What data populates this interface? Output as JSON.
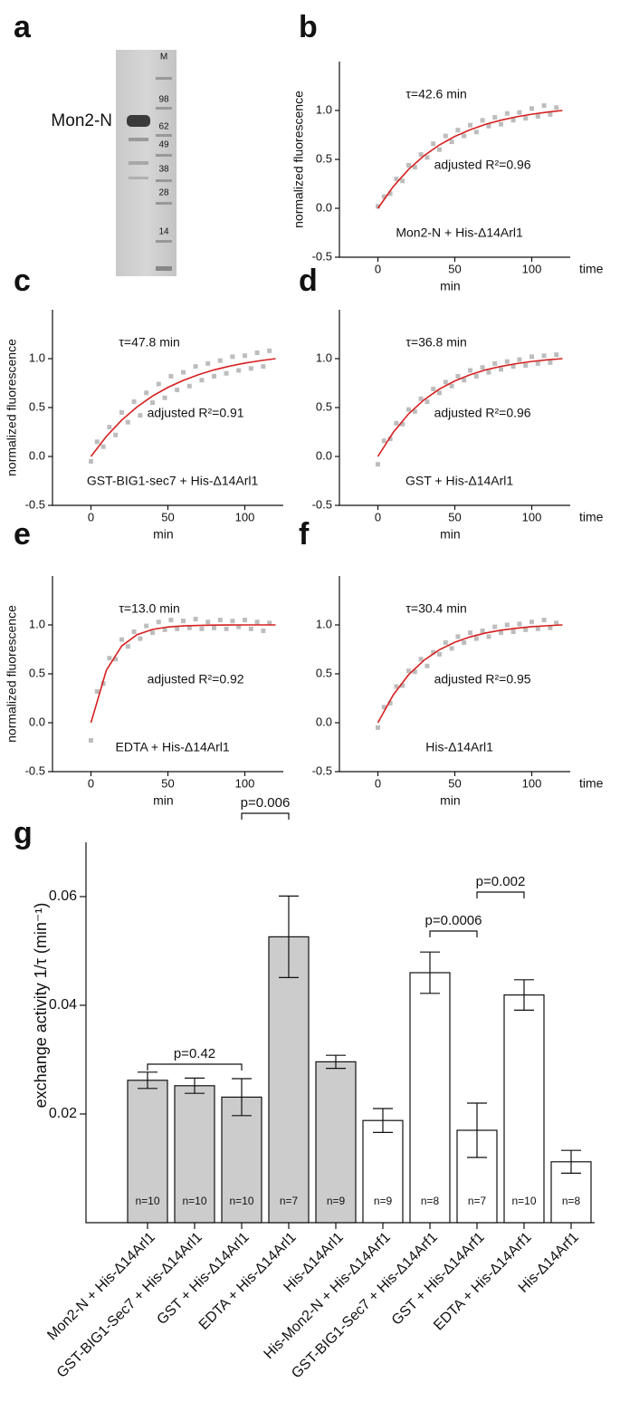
{
  "panel_labels": [
    "a",
    "b",
    "c",
    "d",
    "e",
    "f",
    "g"
  ],
  "gel": {
    "sample_label": "Mon2-N",
    "lane_label": "M",
    "markers": [
      98,
      62,
      49,
      38,
      28,
      14
    ]
  },
  "chart_data": [
    {
      "type": "scatter",
      "ylabel": "normalized fluorescence",
      "xlabel": "min",
      "xlabel_end": "time",
      "annotations": [
        "τ=42.6 min",
        "adjusted R²=0.96",
        "Mon2-N + His-Δ14Arl1"
      ],
      "xlim": [
        -25,
        125
      ],
      "ylim": [
        -0.5,
        1.5
      ],
      "xticks": [
        0,
        50,
        100
      ],
      "yticks": [
        -0.5,
        {
          "value": 0,
          "label": "0.0"
        },
        0.5,
        {
          "value": 1,
          "label": "1.0"
        }
      ],
      "series": [
        {
          "type": "scatter",
          "color": "#bdbdbd",
          "x": [
            0,
            4,
            8,
            12,
            16,
            20,
            24,
            28,
            32,
            36,
            40,
            44,
            48,
            52,
            56,
            60,
            64,
            68,
            72,
            76,
            80,
            84,
            88,
            92,
            96,
            100,
            104,
            108,
            112,
            116
          ],
          "values": [
            0.02,
            0.12,
            0.15,
            0.3,
            0.28,
            0.44,
            0.42,
            0.55,
            0.52,
            0.66,
            0.6,
            0.74,
            0.68,
            0.8,
            0.74,
            0.85,
            0.78,
            0.9,
            0.84,
            0.93,
            0.86,
            0.97,
            0.9,
            0.98,
            0.92,
            1.02,
            0.94,
            1.05,
            0.96,
            1.03
          ]
        },
        {
          "type": "line",
          "color": "#d62020",
          "x": [
            0,
            10,
            20,
            30,
            40,
            50,
            60,
            70,
            80,
            90,
            100,
            110,
            120
          ],
          "values": [
            0,
            0.222,
            0.399,
            0.538,
            0.648,
            0.735,
            0.803,
            0.859,
            0.901,
            0.935,
            0.962,
            0.983,
            1.0
          ]
        }
      ]
    },
    {
      "type": "scatter",
      "ylabel": "normalized fluorescence",
      "xlabel": "min",
      "annotations": [
        "τ=47.8 min",
        "adjusted R²=0.91",
        "GST-BIG1-sec7 + His-Δ14Arl1"
      ],
      "xlim": [
        -25,
        125
      ],
      "ylim": [
        -0.5,
        1.5
      ],
      "xticks": [
        0,
        50,
        100
      ],
      "yticks": [
        -0.5,
        {
          "value": 0,
          "label": "0.0"
        },
        0.5,
        {
          "value": 1,
          "label": "1.0"
        }
      ],
      "series": [
        {
          "type": "scatter",
          "color": "#bdbdbd",
          "x": [
            0,
            4,
            8,
            12,
            16,
            20,
            24,
            28,
            32,
            36,
            40,
            44,
            48,
            52,
            56,
            60,
            64,
            68,
            72,
            76,
            80,
            84,
            88,
            92,
            96,
            100,
            104,
            108,
            112,
            116
          ],
          "values": [
            -0.05,
            0.15,
            0.1,
            0.3,
            0.22,
            0.45,
            0.35,
            0.56,
            0.42,
            0.65,
            0.55,
            0.74,
            0.6,
            0.82,
            0.68,
            0.86,
            0.72,
            0.92,
            0.78,
            0.95,
            0.82,
            0.98,
            0.85,
            1.02,
            0.88,
            1.03,
            0.9,
            1.06,
            0.92,
            1.08
          ]
        },
        {
          "type": "line",
          "color": "#d62020",
          "x": [
            0,
            10,
            20,
            30,
            40,
            50,
            60,
            70,
            80,
            90,
            100,
            110,
            120
          ],
          "values": [
            0,
            0.205,
            0.372,
            0.507,
            0.617,
            0.706,
            0.778,
            0.837,
            0.885,
            0.923,
            0.954,
            0.979,
            1.0
          ]
        }
      ]
    },
    {
      "type": "scatter",
      "xlabel": "min",
      "xlabel_end": "time",
      "annotations": [
        "τ=36.8 min",
        "adjusted R²=0.96",
        "GST + His-Δ14Arl1"
      ],
      "xlim": [
        -25,
        125
      ],
      "ylim": [
        -0.5,
        1.5
      ],
      "xticks": [
        0,
        50,
        100
      ],
      "yticks": [
        -0.5,
        {
          "value": 0,
          "label": "0.0"
        },
        0.5,
        {
          "value": 1,
          "label": "1.0"
        }
      ],
      "series": [
        {
          "type": "scatter",
          "color": "#bdbdbd",
          "x": [
            0,
            4,
            8,
            12,
            16,
            20,
            24,
            28,
            32,
            36,
            40,
            44,
            48,
            52,
            56,
            60,
            64,
            68,
            72,
            76,
            80,
            84,
            88,
            92,
            96,
            100,
            104,
            108,
            112,
            116
          ],
          "values": [
            -0.08,
            0.16,
            0.18,
            0.34,
            0.33,
            0.48,
            0.46,
            0.59,
            0.56,
            0.69,
            0.65,
            0.76,
            0.72,
            0.82,
            0.78,
            0.88,
            0.82,
            0.91,
            0.86,
            0.95,
            0.89,
            0.97,
            0.92,
            0.99,
            0.93,
            1.02,
            0.95,
            1.03,
            0.96,
            1.04
          ]
        },
        {
          "type": "line",
          "color": "#d62020",
          "x": [
            0,
            10,
            20,
            30,
            40,
            50,
            60,
            70,
            80,
            90,
            100,
            110,
            120
          ],
          "values": [
            0,
            0.247,
            0.436,
            0.579,
            0.689,
            0.772,
            0.836,
            0.885,
            0.921,
            0.949,
            0.971,
            0.988,
            1.0
          ]
        }
      ]
    },
    {
      "type": "scatter",
      "ylabel": "normalized fluorescence",
      "xlabel": "min",
      "annotations": [
        "τ=13.0 min",
        "adjusted R²=0.92",
        "EDTA + His-Δ14Arl1"
      ],
      "xlim": [
        -25,
        125
      ],
      "ylim": [
        -0.5,
        1.5
      ],
      "xticks": [
        0,
        50,
        100
      ],
      "yticks": [
        -0.5,
        {
          "value": 0,
          "label": "0.0"
        },
        0.5,
        {
          "value": 1,
          "label": "1.0"
        }
      ],
      "series": [
        {
          "type": "scatter",
          "color": "#bdbdbd",
          "x": [
            0,
            4,
            8,
            12,
            16,
            20,
            24,
            28,
            32,
            36,
            40,
            44,
            48,
            52,
            56,
            60,
            64,
            68,
            72,
            76,
            80,
            84,
            88,
            92,
            96,
            100,
            104,
            108,
            112,
            116
          ],
          "values": [
            -0.18,
            0.32,
            0.4,
            0.66,
            0.65,
            0.85,
            0.78,
            0.93,
            0.86,
            0.99,
            0.92,
            1.03,
            0.95,
            1.05,
            0.96,
            1.04,
            0.97,
            1.06,
            0.96,
            1.03,
            0.97,
            1.05,
            0.96,
            1.04,
            0.98,
            1.05,
            0.96,
            1.03,
            0.94,
            1.02
          ]
        },
        {
          "type": "line",
          "color": "#d62020",
          "x": [
            0,
            10,
            20,
            30,
            40,
            50,
            60,
            70,
            80,
            90,
            100,
            110,
            120
          ],
          "values": [
            0,
            0.537,
            0.785,
            0.901,
            0.954,
            0.979,
            0.99,
            0.995,
            0.998,
            0.999,
            1.0,
            1.0,
            1.0
          ]
        }
      ]
    },
    {
      "type": "scatter",
      "xlabel": "min",
      "xlabel_end": "time",
      "annotations": [
        "τ=30.4 min",
        "adjusted R²=0.95",
        "His-Δ14Arl1"
      ],
      "xlim": [
        -25,
        125
      ],
      "ylim": [
        -0.5,
        1.5
      ],
      "xticks": [
        0,
        50,
        100
      ],
      "yticks": [
        -0.5,
        {
          "value": 0,
          "label": "0.0"
        },
        0.5,
        {
          "value": 1,
          "label": "1.0"
        }
      ],
      "series": [
        {
          "type": "scatter",
          "color": "#bdbdbd",
          "x": [
            0,
            4,
            8,
            12,
            16,
            20,
            24,
            28,
            32,
            36,
            40,
            44,
            48,
            52,
            56,
            60,
            64,
            68,
            72,
            76,
            80,
            84,
            88,
            92,
            96,
            100,
            104,
            108,
            112,
            116
          ],
          "values": [
            -0.05,
            0.16,
            0.2,
            0.37,
            0.38,
            0.53,
            0.52,
            0.65,
            0.58,
            0.72,
            0.7,
            0.82,
            0.76,
            0.88,
            0.82,
            0.92,
            0.86,
            0.94,
            0.88,
            0.98,
            0.92,
            1.0,
            0.93,
            1.01,
            0.95,
            1.03,
            0.96,
            1.05,
            0.97,
            1.02
          ]
        },
        {
          "type": "line",
          "color": "#d62020",
          "x": [
            0,
            10,
            20,
            30,
            40,
            50,
            60,
            70,
            80,
            90,
            100,
            110,
            120
          ],
          "values": [
            0,
            0.285,
            0.491,
            0.639,
            0.746,
            0.823,
            0.878,
            0.917,
            0.946,
            0.966,
            0.982,
            0.992,
            1.0
          ]
        }
      ]
    },
    {
      "type": "bar",
      "ylabel": "exchange activity 1/τ (min⁻¹)",
      "categories": [
        "Mon2-N + His-Δ14Arl1",
        "GST-BIG1-Sec7 + His-Δ14Arl1",
        "GST + His-Δ14Arl1",
        "EDTA + His-Δ14Arl1",
        "His-Δ14Arl1",
        "His-Mon2-N + His-Δ14Arf1",
        "GST-BIG1-Sec7 + His-Δ14Arf1",
        "GST + His-Δ14Arf1",
        "EDTA + His-Δ14Arf1",
        "His-Δ14Arf1"
      ],
      "values": [
        0.0262,
        0.0252,
        0.0231,
        0.0526,
        0.0296,
        0.0188,
        0.046,
        0.017,
        0.0419,
        0.0112
      ],
      "errors": [
        0.0015,
        0.0014,
        0.0034,
        0.0075,
        0.0012,
        0.0022,
        0.0038,
        0.005,
        0.0028,
        0.0021
      ],
      "colors": [
        "#cccccc",
        "#cccccc",
        "#cccccc",
        "#cccccc",
        "#cccccc",
        "#ffffff",
        "#ffffff",
        "#ffffff",
        "#ffffff",
        "#ffffff"
      ],
      "n_labels": [
        "n=10",
        "n=10",
        "n=10",
        "n=7",
        "n=9",
        "n=9",
        "n=8",
        "n=7",
        "n=10",
        "n=8"
      ],
      "annotations": [
        "p=0.42",
        "p=0.006",
        "p=0.0006",
        "p=0.002"
      ],
      "ylim": [
        0,
        0.07
      ],
      "yticks": [
        0.02,
        0.04,
        0.06
      ]
    }
  ]
}
